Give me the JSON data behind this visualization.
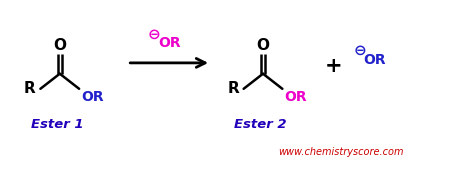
{
  "bg_color": "#ffffff",
  "figsize": [
    4.74,
    1.71
  ],
  "dpi": 100,
  "ester1_label": "Ester 1",
  "ester2_label": "Ester 2",
  "website": "www.chemistryscore.com",
  "website_color": "#cc0000",
  "label_color": "#2200bb",
  "black": "#000000",
  "magenta": "#ee00cc",
  "blue": "#2222cc",
  "xlim": [
    0,
    10
  ],
  "ylim": [
    0,
    3.6
  ]
}
